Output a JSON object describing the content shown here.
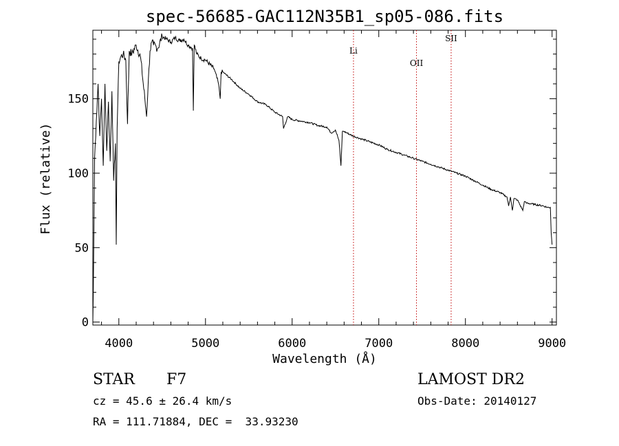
{
  "chart_data": {
    "type": "line",
    "title": "spec-56685-GAC112N35B1_sp05-086.fits",
    "xlabel": "Wavelength (Å)",
    "ylabel": "Flux (relative)",
    "xlim": [
      3700,
      9050
    ],
    "ylim": [
      -2,
      196
    ],
    "x_ticks": [
      4000,
      5000,
      6000,
      7000,
      8000,
      9000
    ],
    "y_ticks": [
      0,
      50,
      100,
      150
    ],
    "series": [
      {
        "name": "spectrum",
        "x": [
          3700,
          3705,
          3720,
          3740,
          3760,
          3780,
          3800,
          3820,
          3840,
          3860,
          3880,
          3900,
          3920,
          3940,
          3960,
          3970,
          3980,
          4000,
          4020,
          4050,
          4080,
          4100,
          4120,
          4150,
          4200,
          4250,
          4300,
          4320,
          4340,
          4360,
          4380,
          4400,
          4450,
          4500,
          4550,
          4600,
          4650,
          4700,
          4750,
          4800,
          4850,
          4860,
          4870,
          4900,
          4950,
          5000,
          5100,
          5150,
          5170,
          5180,
          5200,
          5300,
          5400,
          5500,
          5600,
          5700,
          5800,
          5890,
          5900,
          5950,
          6000,
          6100,
          6200,
          6300,
          6400,
          6450,
          6500,
          6540,
          6563,
          6580,
          6600,
          6700,
          6800,
          6900,
          7000,
          7100,
          7200,
          7300,
          7400,
          7500,
          7600,
          7700,
          7800,
          7900,
          8000,
          8100,
          8200,
          8300,
          8400,
          8480,
          8498,
          8520,
          8542,
          8560,
          8600,
          8662,
          8680,
          8700,
          8800,
          8900,
          8950,
          8980,
          8990,
          9000
        ],
        "y": [
          0,
          18,
          110,
          135,
          160,
          125,
          150,
          105,
          160,
          115,
          148,
          108,
          155,
          95,
          120,
          52,
          130,
          175,
          178,
          180,
          176,
          133,
          182,
          180,
          186,
          178,
          150,
          138,
          162,
          182,
          188,
          186,
          184,
          192,
          190,
          188,
          191,
          189,
          190,
          186,
          184,
          142,
          186,
          180,
          177,
          176,
          170,
          160,
          150,
          168,
          168,
          163,
          157,
          153,
          148,
          146,
          141,
          138,
          130,
          138,
          136,
          135,
          134,
          132,
          131,
          127,
          129,
          122,
          105,
          128,
          128,
          125,
          123,
          121,
          119,
          116,
          114,
          112,
          110,
          108,
          106,
          104,
          102,
          100,
          98,
          95,
          92,
          89,
          87,
          84,
          78,
          84,
          75,
          83,
          82,
          75,
          81,
          80,
          79,
          78,
          77,
          77,
          60,
          52
        ]
      }
    ],
    "annotations": [
      {
        "label": "Li",
        "wavelength": 6708,
        "style": "dotted-red"
      },
      {
        "label": "OII",
        "wavelength": 7435,
        "style": "dotted-red"
      },
      {
        "label": "SII",
        "wavelength": 7835,
        "style": "dotted-red"
      }
    ]
  },
  "info": {
    "object_type": "STAR",
    "subclass": "F7",
    "survey": "LAMOST DR2",
    "redshift": "cz = 45.6 ± 26.4 km/s",
    "obs_date": "Obs-Date: 20140127",
    "coords": "RA = 111.71884, DEC =  33.93230"
  }
}
